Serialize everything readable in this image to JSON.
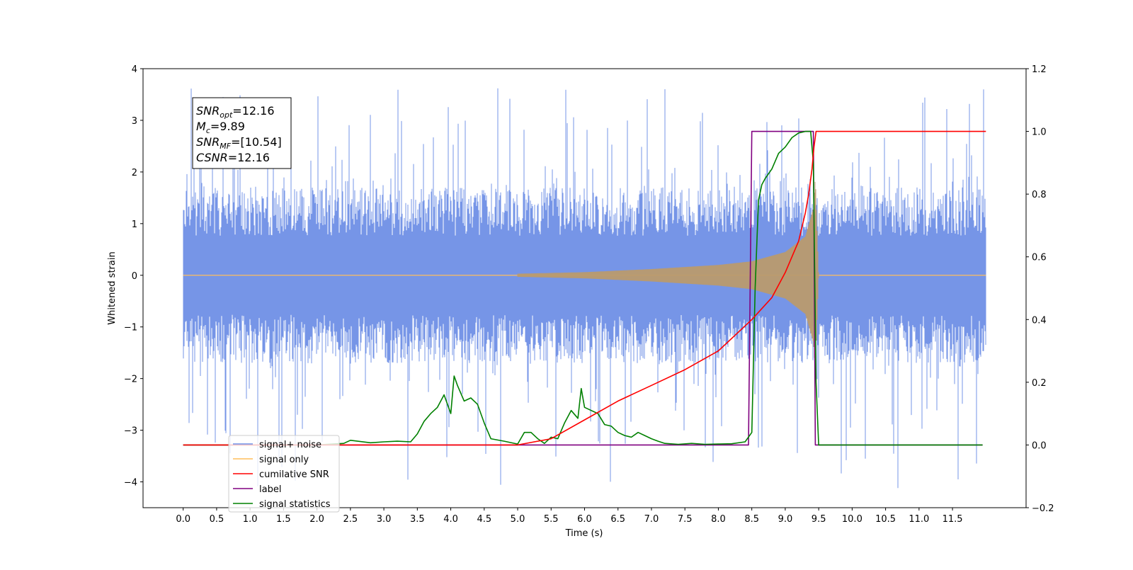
{
  "chart_data": {
    "type": "line",
    "xlabel": "Time (s)",
    "ylabel": "Whitened strain",
    "xlim": [
      -0.6,
      12.6
    ],
    "ylim": [
      -4.5,
      4
    ],
    "y2lim": [
      -0.2,
      1.2
    ],
    "x_ticks": [
      0.0,
      0.5,
      1.0,
      1.5,
      2.0,
      2.5,
      3.0,
      3.5,
      4.0,
      4.5,
      5.0,
      5.5,
      6.0,
      6.5,
      7.0,
      7.5,
      8.0,
      8.5,
      9.0,
      9.5,
      10.0,
      10.5,
      11.0,
      11.5
    ],
    "x_tick_labels": [
      "0.0",
      "0.5",
      "1.0",
      "1.5",
      "2.0",
      "2.5",
      "3.0",
      "3.5",
      "4.0",
      "4.5",
      "5.0",
      "5.5",
      "6.0",
      "6.5",
      "7.0",
      "7.5",
      "8.0",
      "8.5",
      "9.0",
      "9.5",
      "10.0",
      "10.5",
      "11.0",
      "11.5"
    ],
    "y_ticks": [
      4,
      3,
      2,
      1,
      0,
      -1,
      -2,
      -3,
      -4
    ],
    "y_tick_labels": [
      "4",
      "3",
      "2",
      "1",
      "0",
      "−1",
      "−2",
      "−3",
      "−4"
    ],
    "y2_ticks": [
      1.2,
      1.0,
      0.8,
      0.6,
      0.4,
      0.2,
      0.0,
      -0.2
    ],
    "y2_tick_labels": [
      "1.2",
      "1.0",
      "0.8",
      "0.6",
      "0.4",
      "0.2",
      "0.0",
      "−0.2"
    ],
    "legend_position": "lower-left",
    "grid": false,
    "annotation": {
      "lines": [
        {
          "symbol": "SNR",
          "sub": "opt",
          "value": "=12.16"
        },
        {
          "symbol": "M",
          "sub": "c",
          "value": "=9.89"
        },
        {
          "symbol": "SNR",
          "sub": "MF",
          "value": "=[10.54]"
        },
        {
          "symbol": "CSNR",
          "sub": "",
          "value": "=12.16"
        }
      ]
    },
    "series": [
      {
        "name": "signal+ noise",
        "color": "#6f8fe6",
        "axis": "left",
        "noise": {
          "t_start": 0.0,
          "t_end": 12.0,
          "band_low": -1.7,
          "band_high": 1.7,
          "extreme_high": 3.62,
          "extreme_low": -4.12
        }
      },
      {
        "name": "signal only",
        "color": "#ffbe5c",
        "axis": "left",
        "chirp": {
          "t_start": 0.0,
          "t_merger": 9.45,
          "t_end": 12.0,
          "amplitude_points": [
            [
              0.0,
              0.0
            ],
            [
              5.0,
              0.03
            ],
            [
              6.0,
              0.06
            ],
            [
              7.0,
              0.12
            ],
            [
              8.0,
              0.2
            ],
            [
              8.5,
              0.27
            ],
            [
              9.0,
              0.45
            ],
            [
              9.3,
              0.75
            ],
            [
              9.42,
              1.3
            ],
            [
              9.45,
              1.9
            ],
            [
              9.5,
              0.0
            ],
            [
              12.0,
              0.0
            ]
          ]
        }
      },
      {
        "name": "cumilative SNR",
        "color": "#ff0000",
        "axis": "right",
        "x": [
          0.0,
          5.0,
          5.5,
          6.0,
          6.5,
          7.0,
          7.5,
          8.0,
          8.5,
          8.8,
          9.0,
          9.2,
          9.3,
          9.35,
          9.4,
          9.43,
          9.46,
          9.5,
          12.0
        ],
        "y": [
          0.0,
          0.0,
          0.02,
          0.08,
          0.14,
          0.19,
          0.24,
          0.3,
          0.4,
          0.47,
          0.55,
          0.65,
          0.74,
          0.8,
          0.88,
          0.95,
          1.0,
          1.0,
          1.0
        ]
      },
      {
        "name": "label",
        "color": "#800080",
        "axis": "right",
        "x": [
          0.0,
          8.45,
          8.5,
          9.42,
          9.45,
          11.95
        ],
        "y": [
          0.0,
          0.0,
          1.0,
          1.0,
          0.0,
          0.0
        ]
      },
      {
        "name": "signal statistics",
        "color": "#008000",
        "axis": "right",
        "x": [
          0.0,
          2.0,
          2.4,
          2.5,
          2.8,
          3.0,
          3.2,
          3.4,
          3.5,
          3.6,
          3.7,
          3.8,
          3.9,
          4.0,
          4.05,
          4.1,
          4.2,
          4.3,
          4.4,
          4.5,
          4.6,
          4.8,
          5.0,
          5.1,
          5.2,
          5.3,
          5.4,
          5.5,
          5.6,
          5.7,
          5.8,
          5.9,
          5.95,
          6.0,
          6.1,
          6.2,
          6.3,
          6.4,
          6.5,
          6.6,
          6.7,
          6.8,
          6.9,
          7.0,
          7.1,
          7.2,
          7.4,
          7.6,
          7.8,
          8.0,
          8.2,
          8.4,
          8.5,
          8.55,
          8.6,
          8.65,
          8.7,
          8.8,
          8.9,
          9.0,
          9.1,
          9.2,
          9.3,
          9.38,
          9.42,
          9.46,
          9.5,
          11.95
        ],
        "y": [
          0.0,
          0.0,
          0.005,
          0.015,
          0.007,
          0.01,
          0.012,
          0.01,
          0.035,
          0.075,
          0.1,
          0.12,
          0.16,
          0.1,
          0.22,
          0.19,
          0.14,
          0.15,
          0.13,
          0.07,
          0.02,
          0.012,
          0.003,
          0.04,
          0.04,
          0.02,
          0.005,
          0.025,
          0.02,
          0.07,
          0.11,
          0.085,
          0.18,
          0.12,
          0.11,
          0.1,
          0.065,
          0.06,
          0.04,
          0.03,
          0.025,
          0.04,
          0.03,
          0.02,
          0.012,
          0.005,
          0.002,
          0.005,
          0.002,
          0.003,
          0.004,
          0.01,
          0.04,
          0.5,
          0.78,
          0.83,
          0.85,
          0.88,
          0.93,
          0.95,
          0.98,
          0.995,
          1.0,
          1.0,
          0.9,
          0.2,
          0.0,
          0.0
        ]
      }
    ]
  }
}
